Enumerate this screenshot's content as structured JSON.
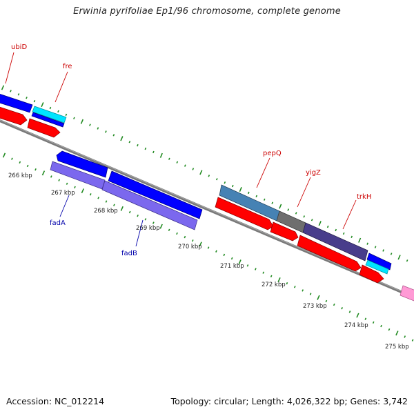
{
  "title": "Erwinia pyrifoliae Ep1/96 chromosome, complete genome",
  "footer": {
    "accession": "Accession: NC_012214",
    "summary": "Topology: circular; Length: 4,026,322 bp; Genes: 3,742"
  },
  "scale_labels": [
    "266 kbp",
    "267 kbp",
    "268 kbp",
    "269 kbp",
    "270 kbp",
    "271 kbp",
    "272 kbp",
    "273 kbp",
    "274 kbp",
    "275 kbp"
  ],
  "gene_labels": [
    {
      "text": "ubiD",
      "color": "#cc0000"
    },
    {
      "text": "fre",
      "color": "#cc0000"
    },
    {
      "text": "pepQ",
      "color": "#cc0000"
    },
    {
      "text": "yigZ",
      "color": "#cc0000"
    },
    {
      "text": "trkH",
      "color": "#cc0000"
    },
    {
      "text": "fadA",
      "color": "#0000aa"
    },
    {
      "text": "fadB",
      "color": "#0000aa"
    }
  ],
  "colors": {
    "backbone": "#7a7a7a",
    "tick": "#228b22",
    "forward_cds": "#ff0000",
    "reverse_cds": "#0000ff",
    "feature_cyan": "#00e5ff",
    "feature_purple": "#7b68ee",
    "feature_steelblue": "#4682b4",
    "feature_grey": "#6e6e6e",
    "feature_darkslate": "#483d8b",
    "feature_pink": "#ff9ad5"
  }
}
